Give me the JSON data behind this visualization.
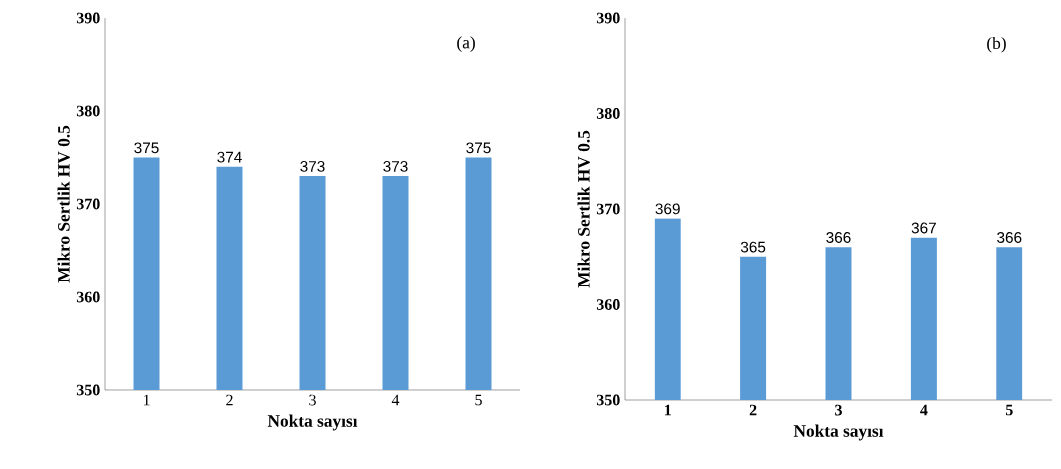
{
  "chart_data": [
    {
      "type": "bar",
      "categories": [
        "1",
        "2",
        "3",
        "4",
        "5"
      ],
      "values": [
        375,
        374,
        373,
        373,
        375
      ],
      "color": "#5b9bd5",
      "data_labels": true,
      "xlabel": "Nokta sayısı",
      "ylabel": "Mikro Sertlik HV 0.5",
      "ylim": [
        350,
        390
      ],
      "yticks": [
        350,
        360,
        370,
        380,
        390
      ],
      "annotations": [
        "(a)"
      ]
    },
    {
      "type": "bar",
      "categories": [
        "1",
        "2",
        "3",
        "4",
        "5"
      ],
      "values": [
        369,
        365,
        366,
        367,
        366
      ],
      "color": "#5b9bd5",
      "data_labels": true,
      "xlabel": "Nokta sayısı",
      "ylabel": "Mikro Sertlik HV 0.5",
      "ylim": [
        350,
        390
      ],
      "yticks": [
        350,
        360,
        370,
        380,
        390
      ],
      "annotations": [
        "(b)"
      ]
    }
  ]
}
